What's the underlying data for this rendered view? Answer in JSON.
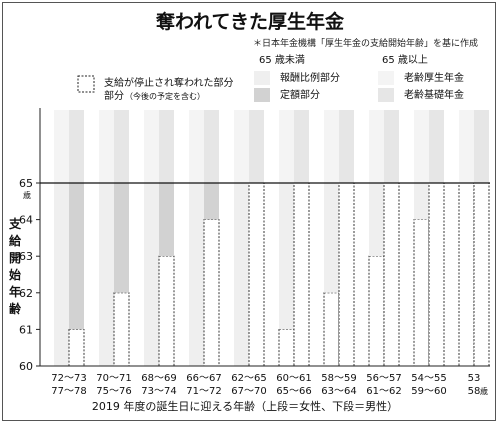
{
  "title": "奪われてきた厚生年金",
  "source": "＊日本年金機構「厚生年金の支給開始年齢」を基に作成",
  "chart_data": {
    "type": "bar",
    "x_title": "2019 年度の誕生日に迎える年齢（上段＝女性、下段＝男性）",
    "y_title": "支給開始年齢",
    "y_unit": "歳",
    "x_unit": "歳",
    "ylim": [
      60,
      65
    ],
    "yticks": [
      "60",
      "61",
      "62",
      "63",
      "64",
      "65"
    ],
    "reference_line": 65,
    "legend": {
      "suspended_label": "支給が停止され奪われた部分",
      "suspended_note": "（今後の予定を含む）",
      "under65_header": "65 歳未満",
      "under65_proportional": "報酬比例部分",
      "under65_flat": "定額部分",
      "over65_header": "65 歳以上",
      "over65_employee": "老齢厚生年金",
      "over65_basic": "老齢基礎年金"
    },
    "categories": [
      {
        "upper": "72～73",
        "lower": "77～78"
      },
      {
        "upper": "70～71",
        "lower": "75～76"
      },
      {
        "upper": "68～69",
        "lower": "73～74"
      },
      {
        "upper": "66～67",
        "lower": "71～72"
      },
      {
        "upper": "62～65",
        "lower": "67～70"
      },
      {
        "upper": "60～61",
        "lower": "65～66"
      },
      {
        "upper": "58～59",
        "lower": "63～64"
      },
      {
        "upper": "56～57",
        "lower": "61～62"
      },
      {
        "upper": "54～55",
        "lower": "59～60"
      },
      {
        "upper": "53",
        "lower": "58"
      }
    ],
    "series": [
      {
        "name": "報酬比例部分",
        "start_age": [
          60,
          60,
          60,
          60,
          60,
          61,
          62,
          63,
          64,
          65
        ]
      },
      {
        "name": "定額部分",
        "start_age": [
          61,
          62,
          63,
          64,
          65,
          65,
          65,
          65,
          65,
          65
        ]
      }
    ],
    "colors": {
      "proportional": "#efefef",
      "flat": "#d2d2d2",
      "over65_employee": "#f4f4f4",
      "over65_basic": "#e6e6e6",
      "suspended": "#ffffff"
    }
  }
}
